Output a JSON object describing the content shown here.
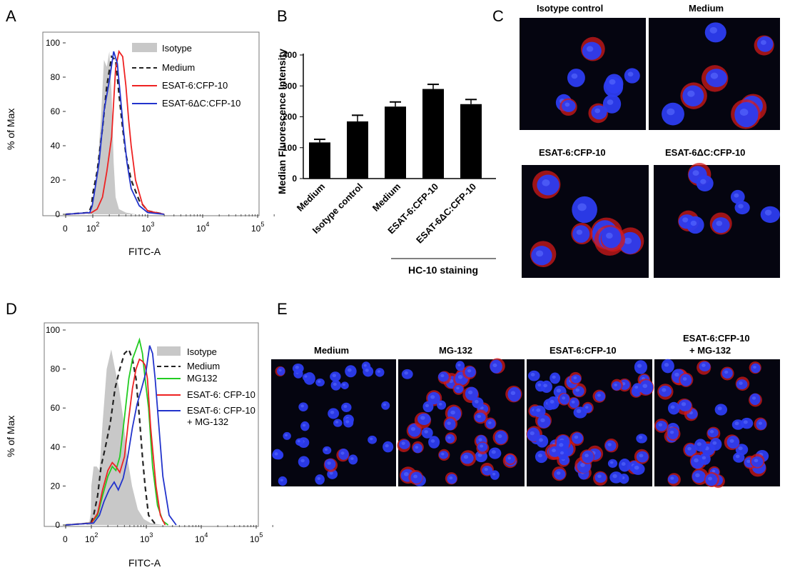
{
  "panels": {
    "A": {
      "label": "A",
      "ylabel": "% of Max",
      "xlabel": "FITC-A",
      "y_ticks": [
        "0",
        "20",
        "40",
        "60",
        "80",
        "100"
      ],
      "x_ticks": [
        {
          "base": "0",
          "exp": ""
        },
        {
          "base": "10",
          "exp": "2"
        },
        {
          "base": "10",
          "exp": "3"
        },
        {
          "base": "10",
          "exp": "4"
        },
        {
          "base": "10",
          "exp": "5"
        }
      ],
      "legend": [
        "Isotype",
        "Medium",
        "ESAT-6:CFP-10",
        "ESAT-6ΔC:CFP-10"
      ]
    },
    "B": {
      "label": "B",
      "ylabel": "Median Fluorescence Intensity",
      "group_label": "HC-10 staining"
    },
    "C": {
      "label": "C",
      "image_labels": [
        "Isotype control",
        "Medium",
        "ESAT-6:CFP-10",
        "ESAT-6ΔC:CFP-10"
      ]
    },
    "D": {
      "label": "D",
      "ylabel": "% of Max",
      "xlabel": "FITC-A",
      "y_ticks": [
        "0",
        "20",
        "40",
        "60",
        "80",
        "100"
      ],
      "x_ticks": [
        {
          "base": "0",
          "exp": ""
        },
        {
          "base": "10",
          "exp": "2"
        },
        {
          "base": "10",
          "exp": "3"
        },
        {
          "base": "10",
          "exp": "4"
        },
        {
          "base": "10",
          "exp": "5"
        }
      ],
      "legend": [
        "Isotype",
        "Medium",
        "MG132",
        "ESAT-6: CFP-10",
        "ESAT-6: CFP-10",
        "+ MG-132"
      ]
    },
    "E": {
      "label": "E",
      "image_labels": [
        "Medium",
        "MG-132",
        "ESAT-6:CFP-10",
        "ESAT-6:CFP-10",
        "+ MG-132"
      ]
    }
  },
  "colors": {
    "isotype_fill": "#c8c8c8",
    "medium": "#222222",
    "mg132": "#22cc22",
    "esat": "#ee2222",
    "esat_dc": "#2233cc",
    "bar": "#000000",
    "micro_bg": "#050510",
    "nucleus": "#2c3cf0",
    "stain": "#d11a1a"
  },
  "chart_data": [
    {
      "panel": "A",
      "type": "line",
      "xscale": "log",
      "xlabel": "FITC-A",
      "ylabel": "% of Max",
      "ylim": [
        0,
        100
      ],
      "series": [
        {
          "name": "Isotype",
          "style": "filled",
          "x": [
            0,
            40,
            80,
            100,
            120,
            140,
            160,
            180,
            200,
            220,
            240,
            260,
            300,
            400,
            600,
            1000,
            2000
          ],
          "y": [
            0,
            0,
            2,
            8,
            25,
            55,
            90,
            86,
            95,
            70,
            30,
            10,
            3,
            1,
            0,
            0,
            0
          ]
        },
        {
          "name": "Medium",
          "style": "dashed",
          "x": [
            0,
            50,
            80,
            100,
            120,
            150,
            180,
            220,
            260,
            300,
            350,
            400,
            500,
            700,
            1000,
            2000
          ],
          "y": [
            0,
            1,
            5,
            12,
            25,
            50,
            75,
            92,
            90,
            70,
            50,
            35,
            20,
            8,
            2,
            0
          ]
        },
        {
          "name": "ESAT-6:CFP-10",
          "style": "line",
          "x": [
            0,
            80,
            120,
            150,
            180,
            220,
            260,
            300,
            350,
            400,
            450,
            500,
            600,
            800,
            1000,
            2000
          ],
          "y": [
            0,
            1,
            3,
            10,
            25,
            45,
            85,
            95,
            92,
            75,
            55,
            40,
            20,
            6,
            2,
            0
          ]
        },
        {
          "name": "ESAT-6ΔC:CFP-10",
          "style": "line",
          "x": [
            0,
            60,
            90,
            110,
            130,
            160,
            200,
            240,
            280,
            320,
            360,
            420,
            500,
            700,
            1000,
            2000
          ],
          "y": [
            0,
            1,
            5,
            15,
            30,
            60,
            78,
            95,
            88,
            68,
            50,
            30,
            15,
            5,
            1,
            0
          ]
        }
      ]
    },
    {
      "panel": "B",
      "type": "bar",
      "categories": [
        "Medium",
        "Isotype control",
        "Medium",
        "ESAT-6:CFP-10",
        "ESAT-6ΔC:CFP-10"
      ],
      "values": [
        117,
        185,
        233,
        290,
        241
      ],
      "errors": [
        10,
        20,
        15,
        15,
        15
      ],
      "ylabel": "Median Fluorescence Intensity",
      "ylim": [
        0,
        400
      ],
      "yticks": [
        0,
        100,
        200,
        300,
        400
      ]
    },
    {
      "panel": "D",
      "type": "line",
      "xscale": "log",
      "xlabel": "FITC-A",
      "ylabel": "% of Max",
      "ylim": [
        0,
        100
      ],
      "series": [
        {
          "name": "Isotype",
          "style": "filled",
          "x": [
            0,
            40,
            70,
            90,
            100,
            110,
            125,
            140,
            160,
            190,
            230,
            270,
            320,
            380,
            450,
            550,
            700,
            900,
            1200,
            2000
          ],
          "y": [
            0,
            0,
            2,
            6,
            20,
            30,
            30,
            28,
            52,
            80,
            90,
            80,
            70,
            55,
            35,
            20,
            8,
            3,
            1,
            0
          ]
        },
        {
          "name": "Medium",
          "style": "dashed",
          "x": [
            0,
            90,
            110,
            130,
            150,
            180,
            220,
            270,
            330,
            400,
            480,
            560,
            650,
            750,
            850,
            950,
            1100,
            1500
          ],
          "y": [
            0,
            1,
            5,
            15,
            30,
            40,
            52,
            70,
            80,
            88,
            90,
            85,
            75,
            55,
            35,
            20,
            5,
            0
          ]
        },
        {
          "name": "MG132",
          "style": "line",
          "x": [
            0,
            100,
            130,
            160,
            200,
            240,
            280,
            330,
            400,
            480,
            560,
            650,
            750,
            850,
            950,
            1100,
            1300,
            1600,
            2000,
            2500
          ],
          "y": [
            0,
            1,
            5,
            15,
            25,
            30,
            28,
            35,
            55,
            75,
            85,
            90,
            95,
            88,
            75,
            60,
            30,
            10,
            2,
            0
          ]
        },
        {
          "name": "ESAT-6: CFP-10",
          "style": "line",
          "x": [
            0,
            100,
            130,
            160,
            200,
            240,
            280,
            330,
            400,
            480,
            560,
            650,
            750,
            850,
            950,
            1050,
            1200,
            1500,
            1800,
            2200
          ],
          "y": [
            0,
            1,
            6,
            18,
            28,
            32,
            30,
            27,
            35,
            55,
            70,
            80,
            85,
            84,
            82,
            75,
            50,
            20,
            5,
            0
          ]
        },
        {
          "name": "ESAT-6: CFP-10 + MG-132",
          "style": "line",
          "x": [
            0,
            110,
            140,
            170,
            210,
            260,
            310,
            380,
            460,
            560,
            680,
            820,
            980,
            1150,
            1300,
            1450,
            1650,
            2000,
            2600,
            3500
          ],
          "y": [
            0,
            1,
            5,
            12,
            18,
            22,
            18,
            24,
            35,
            50,
            62,
            70,
            78,
            92,
            88,
            75,
            55,
            25,
            5,
            0
          ]
        }
      ]
    }
  ]
}
